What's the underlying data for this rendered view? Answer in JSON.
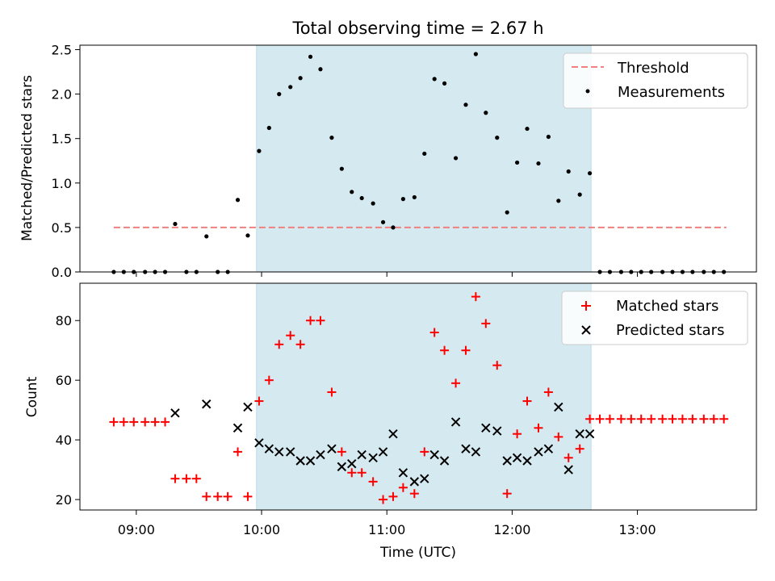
{
  "chart_data": [
    {
      "type": "scatter",
      "title": "Total observing time = 2.67 h",
      "xlabel": "",
      "ylabel": "Matched/Predicted stars",
      "ylim": [
        0,
        2.55
      ],
      "yticks": [
        "0.0",
        "0.5",
        "1.0",
        "1.5",
        "2.0",
        "2.5"
      ],
      "xlim_hours": [
        8.55,
        13.95
      ],
      "shaded_interval_hours": [
        9.96,
        12.63
      ],
      "shaded_color": "#d4eaf0",
      "legend_position": "top-right",
      "threshold": {
        "name": "Threshold",
        "value": 0.5,
        "x_start": 8.82,
        "x_end": 13.71,
        "color": "#f08080"
      },
      "series": [
        {
          "name": "Measurements",
          "color": "#000000",
          "x": [
            8.82,
            8.9,
            8.98,
            9.07,
            9.15,
            9.23,
            9.31,
            9.4,
            9.48,
            9.56,
            9.65,
            9.73,
            9.81,
            9.89,
            9.98,
            10.06,
            10.14,
            10.23,
            10.31,
            10.39,
            10.47,
            10.56,
            10.64,
            10.72,
            10.8,
            10.89,
            10.97,
            11.05,
            11.13,
            11.22,
            11.3,
            11.38,
            11.46,
            11.55,
            11.63,
            11.71,
            11.79,
            11.88,
            11.96,
            12.04,
            12.12,
            12.21,
            12.29,
            12.37,
            12.45,
            12.54,
            12.62,
            12.7,
            12.78,
            12.87,
            12.95,
            13.03,
            13.11,
            13.2,
            13.28,
            13.36,
            13.44,
            13.53,
            13.61,
            13.69
          ],
          "y": [
            0,
            0,
            0,
            0,
            0,
            0,
            0.54,
            0,
            0,
            0.4,
            0,
            0,
            0.81,
            0.41,
            1.36,
            1.62,
            2.0,
            2.08,
            2.18,
            2.42,
            2.28,
            1.51,
            1.16,
            0.9,
            0.83,
            0.77,
            0.56,
            0.5,
            0.82,
            0.84,
            1.33,
            2.17,
            2.12,
            1.28,
            1.88,
            2.45,
            1.79,
            1.51,
            0.67,
            1.23,
            1.61,
            1.22,
            1.52,
            0.8,
            1.13,
            0.87,
            1.11,
            0,
            0,
            0,
            0,
            0,
            0,
            0,
            0,
            0,
            0,
            0,
            0,
            0
          ]
        }
      ]
    },
    {
      "type": "scatter",
      "title": "",
      "xlabel": "Time (UTC)",
      "ylabel": "Count",
      "ylim": [
        16.5,
        92.5
      ],
      "yticks": [
        "20",
        "40",
        "60",
        "80"
      ],
      "xticks": [
        "09:00",
        "10:00",
        "11:00",
        "12:00",
        "13:00"
      ],
      "xlim_hours": [
        8.55,
        13.95
      ],
      "shaded_interval_hours": [
        9.96,
        12.63
      ],
      "shaded_color": "#d4eaf0",
      "legend_position": "top-right",
      "series": [
        {
          "name": "Matched stars",
          "marker": "+",
          "color": "#ff0000",
          "x": [
            8.82,
            8.9,
            8.98,
            9.07,
            9.15,
            9.23,
            9.31,
            9.4,
            9.48,
            9.56,
            9.65,
            9.73,
            9.81,
            9.89,
            9.98,
            10.06,
            10.14,
            10.23,
            10.31,
            10.39,
            10.47,
            10.56,
            10.64,
            10.72,
            10.8,
            10.89,
            10.97,
            11.05,
            11.13,
            11.22,
            11.3,
            11.38,
            11.46,
            11.55,
            11.63,
            11.71,
            11.79,
            11.88,
            11.96,
            12.04,
            12.12,
            12.21,
            12.29,
            12.37,
            12.45,
            12.54,
            12.62,
            12.7,
            12.78,
            12.87,
            12.95,
            13.03,
            13.11,
            13.2,
            13.28,
            13.36,
            13.44,
            13.53,
            13.61,
            13.69
          ],
          "y": [
            46,
            46,
            46,
            46,
            46,
            46,
            27,
            27,
            27,
            21,
            21,
            21,
            36,
            21,
            53,
            60,
            72,
            75,
            72,
            80,
            80,
            56,
            36,
            29,
            29,
            26,
            20,
            21,
            24,
            22,
            36,
            76,
            70,
            59,
            70,
            88,
            79,
            65,
            22,
            42,
            53,
            44,
            56,
            41,
            34,
            37,
            47,
            47,
            47,
            47,
            47,
            47,
            47,
            47,
            47,
            47,
            47,
            47,
            47,
            47
          ]
        },
        {
          "name": "Predicted stars",
          "marker": "x",
          "color": "#000000",
          "x": [
            9.31,
            9.56,
            9.81,
            9.89,
            9.98,
            10.06,
            10.14,
            10.23,
            10.31,
            10.39,
            10.47,
            10.56,
            10.64,
            10.72,
            10.8,
            10.89,
            10.97,
            11.05,
            11.13,
            11.22,
            11.3,
            11.38,
            11.46,
            11.55,
            11.63,
            11.71,
            11.79,
            11.88,
            11.96,
            12.04,
            12.12,
            12.21,
            12.29,
            12.37,
            12.45,
            12.54,
            12.62
          ],
          "y": [
            49,
            52,
            44,
            51,
            39,
            37,
            36,
            36,
            33,
            33,
            35,
            37,
            31,
            32,
            35,
            34,
            36,
            42,
            29,
            26,
            27,
            35,
            33,
            46,
            37,
            36,
            44,
            43,
            33,
            34,
            33,
            36,
            37,
            51,
            30,
            42,
            42
          ]
        }
      ]
    }
  ]
}
